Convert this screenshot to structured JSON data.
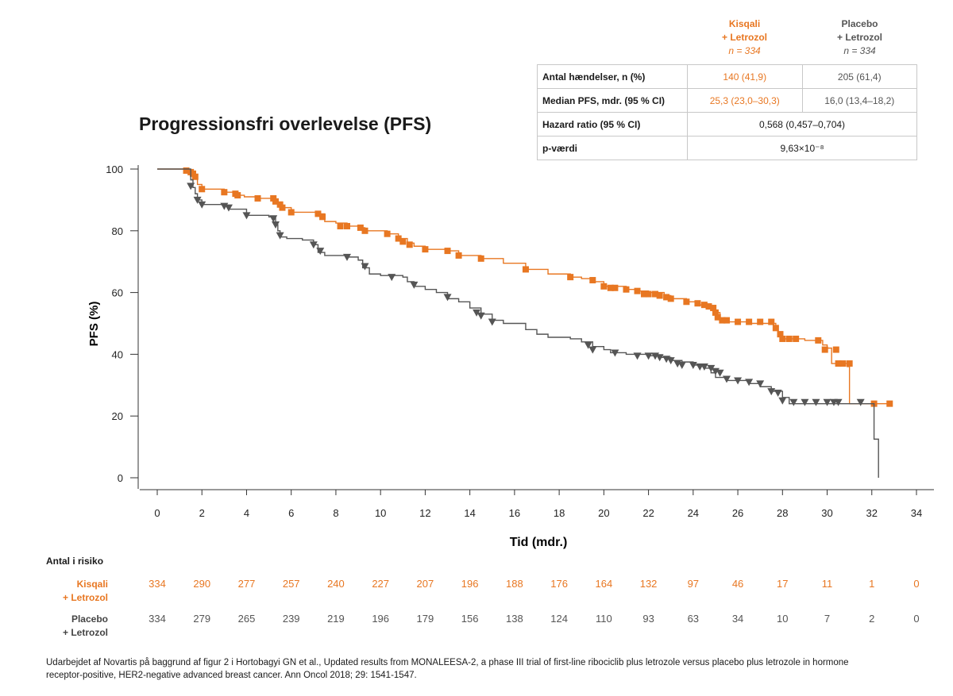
{
  "stats_table": {
    "kisqali_header": {
      "name": "Kisqali",
      "combo": "+ Letrozol",
      "n": "n = 334"
    },
    "placebo_header": {
      "name": "Placebo",
      "combo": "+ Letrozol",
      "n": "n = 334"
    },
    "rows": [
      {
        "label": "Antal hændelser, n (%)",
        "kisqali": "140 (41,9)",
        "placebo": "205 (61,4)"
      },
      {
        "label": "Median PFS, mdr. (95 % CI)",
        "kisqali": "25,3 (23,0–30,3)",
        "placebo": "16,0 (13,4–18,2)"
      },
      {
        "label": "Hazard ratio (95 % CI)",
        "combined": "0,568 (0,457–0,704)"
      },
      {
        "label": "p-værdi",
        "combined": "9,63×10⁻⁸"
      }
    ]
  },
  "chart_data": {
    "type": "line",
    "title": "Progressionsfri overlevelse (PFS)",
    "xlabel": "Tid (mdr.)",
    "ylabel": "PFS (%)",
    "xlim": [
      -1,
      34
    ],
    "ylim": [
      0,
      100
    ],
    "xticks": [
      0,
      2,
      4,
      6,
      8,
      10,
      12,
      14,
      16,
      18,
      20,
      22,
      24,
      26,
      28,
      30,
      32,
      34
    ],
    "yticks": [
      0,
      20,
      40,
      60,
      80,
      100
    ],
    "series": [
      {
        "name": "Kisqali + Letrozol",
        "color": "#e87722",
        "marker": "square",
        "points": [
          [
            0,
            100
          ],
          [
            1.3,
            99.5
          ],
          [
            1.5,
            98.5
          ],
          [
            1.7,
            97
          ],
          [
            1.8,
            95
          ],
          [
            2,
            93.5
          ],
          [
            3,
            92.5
          ],
          [
            3.6,
            91.5
          ],
          [
            3.9,
            91
          ],
          [
            4.5,
            90.5
          ],
          [
            5.2,
            90
          ],
          [
            5.4,
            89
          ],
          [
            5.6,
            87.5
          ],
          [
            6,
            86
          ],
          [
            7.2,
            85.5
          ],
          [
            7.5,
            83
          ],
          [
            8,
            82.5
          ],
          [
            8.5,
            81.5
          ],
          [
            9.1,
            81
          ],
          [
            9.3,
            80
          ],
          [
            10.3,
            79
          ],
          [
            10.8,
            77.5
          ],
          [
            11.2,
            76
          ],
          [
            11.5,
            75
          ],
          [
            12,
            74
          ],
          [
            13,
            73.5
          ],
          [
            13.5,
            72
          ],
          [
            14.5,
            71
          ],
          [
            15.5,
            69.5
          ],
          [
            16.5,
            67.5
          ],
          [
            17.5,
            66
          ],
          [
            18.5,
            65
          ],
          [
            19,
            64.5
          ],
          [
            19.6,
            63.5
          ],
          [
            20,
            62
          ],
          [
            21,
            61
          ],
          [
            21.5,
            60.5
          ],
          [
            22,
            60
          ],
          [
            22.7,
            59
          ],
          [
            23,
            58
          ],
          [
            23.7,
            57
          ],
          [
            24.3,
            56
          ],
          [
            24.8,
            55
          ],
          [
            25,
            53.5
          ],
          [
            25.2,
            51.5
          ],
          [
            25.5,
            50.5
          ],
          [
            26.5,
            50
          ],
          [
            27.5,
            50
          ],
          [
            27.7,
            48
          ],
          [
            27.8,
            46.5
          ],
          [
            28,
            45
          ],
          [
            29,
            44.5
          ],
          [
            29.8,
            43
          ],
          [
            30,
            42
          ],
          [
            30.2,
            37
          ],
          [
            30.9,
            36
          ],
          [
            31,
            24
          ],
          [
            32,
            24
          ],
          [
            32.8,
            24
          ]
        ],
        "censor_marks": [
          [
            1.3,
            99.5
          ],
          [
            1.5,
            99
          ],
          [
            1.6,
            98.5
          ],
          [
            1.7,
            97.5
          ],
          [
            2,
            93.5
          ],
          [
            3,
            92.5
          ],
          [
            3.5,
            92
          ],
          [
            3.6,
            91.5
          ],
          [
            4.5,
            90.5
          ],
          [
            5.2,
            90.5
          ],
          [
            5.3,
            89.5
          ],
          [
            5.5,
            88.5
          ],
          [
            5.6,
            87.5
          ],
          [
            6,
            86
          ],
          [
            7.2,
            85.5
          ],
          [
            7.4,
            84.5
          ],
          [
            8.2,
            81.5
          ],
          [
            8.5,
            81.5
          ],
          [
            9.1,
            81
          ],
          [
            9.3,
            80
          ],
          [
            10.3,
            79
          ],
          [
            10.8,
            77.5
          ],
          [
            11,
            76.5
          ],
          [
            11.3,
            75.5
          ],
          [
            12,
            74
          ],
          [
            13,
            73.5
          ],
          [
            13.5,
            72
          ],
          [
            14.5,
            71
          ],
          [
            16.5,
            67.5
          ],
          [
            18.5,
            65
          ],
          [
            19.5,
            64
          ],
          [
            20,
            62
          ],
          [
            20.3,
            61.5
          ],
          [
            20.5,
            61.5
          ],
          [
            21,
            61
          ],
          [
            21.5,
            60.5
          ],
          [
            21.8,
            59.5
          ],
          [
            22,
            59.5
          ],
          [
            22.3,
            59.5
          ],
          [
            22.5,
            59
          ],
          [
            22.8,
            58.5
          ],
          [
            23,
            58
          ],
          [
            23.7,
            57
          ],
          [
            24.2,
            56.5
          ],
          [
            24.5,
            56
          ],
          [
            24.7,
            55.5
          ],
          [
            24.9,
            55
          ],
          [
            25,
            53.5
          ],
          [
            25.1,
            52
          ],
          [
            25.3,
            51
          ],
          [
            25.5,
            51
          ],
          [
            26,
            50.5
          ],
          [
            26.5,
            50.5
          ],
          [
            27,
            50.5
          ],
          [
            27.5,
            50.5
          ],
          [
            27.7,
            48.5
          ],
          [
            27.9,
            46.5
          ],
          [
            28,
            45
          ],
          [
            28.3,
            45
          ],
          [
            28.6,
            45
          ],
          [
            29.6,
            44.5
          ],
          [
            29.9,
            41.5
          ],
          [
            30.4,
            41.5
          ],
          [
            30.5,
            37
          ],
          [
            30.7,
            37
          ],
          [
            31,
            37
          ],
          [
            32.1,
            24
          ],
          [
            32.8,
            24
          ]
        ]
      },
      {
        "name": "Placebo + Letrozol",
        "color": "#555555",
        "marker": "triangle-down",
        "points": [
          [
            0,
            100
          ],
          [
            1.5,
            99
          ],
          [
            1.5,
            96.5
          ],
          [
            1.6,
            94
          ],
          [
            1.7,
            92
          ],
          [
            1.8,
            90
          ],
          [
            2,
            88.5
          ],
          [
            3,
            88
          ],
          [
            3.2,
            87
          ],
          [
            4,
            85
          ],
          [
            5,
            84.5
          ],
          [
            5.3,
            82
          ],
          [
            5.4,
            80
          ],
          [
            5.5,
            78
          ],
          [
            5.8,
            77.5
          ],
          [
            6.5,
            77
          ],
          [
            7,
            75.5
          ],
          [
            7.2,
            73
          ],
          [
            7.5,
            72
          ],
          [
            8.5,
            71.5
          ],
          [
            9,
            70.5
          ],
          [
            9.2,
            68
          ],
          [
            9.5,
            66
          ],
          [
            10,
            65.5
          ],
          [
            11,
            65
          ],
          [
            11.2,
            63.5
          ],
          [
            11.5,
            62
          ],
          [
            12,
            61
          ],
          [
            12.5,
            60
          ],
          [
            13,
            58
          ],
          [
            13.5,
            57
          ],
          [
            14,
            55
          ],
          [
            14.5,
            53
          ],
          [
            15,
            51
          ],
          [
            15.5,
            50
          ],
          [
            16.5,
            48
          ],
          [
            17,
            46.5
          ],
          [
            17.5,
            45.5
          ],
          [
            18.5,
            45
          ],
          [
            19,
            44
          ],
          [
            19.5,
            42.5
          ],
          [
            20,
            41.5
          ],
          [
            20.3,
            40.5
          ],
          [
            21,
            40
          ],
          [
            22,
            39.5
          ],
          [
            22.5,
            39
          ],
          [
            23,
            38
          ],
          [
            23.5,
            37.5
          ],
          [
            24,
            36.5
          ],
          [
            24.5,
            35.5
          ],
          [
            24.8,
            34
          ],
          [
            25,
            32.5
          ],
          [
            25.5,
            31.5
          ],
          [
            26.5,
            30.5
          ],
          [
            27,
            29.5
          ],
          [
            27.5,
            28
          ],
          [
            28,
            26
          ],
          [
            28.3,
            24
          ],
          [
            29,
            24
          ],
          [
            30.5,
            24
          ],
          [
            31.5,
            24
          ],
          [
            32,
            24
          ],
          [
            32.1,
            12.5
          ],
          [
            32.3,
            12
          ],
          [
            32.3,
            0
          ]
        ],
        "censor_marks": [
          [
            1.5,
            94.5
          ],
          [
            1.8,
            90
          ],
          [
            2,
            88.5
          ],
          [
            3,
            88
          ],
          [
            3.2,
            87.5
          ],
          [
            4,
            85
          ],
          [
            5.2,
            84
          ],
          [
            5.3,
            82
          ],
          [
            5.5,
            78.5
          ],
          [
            7,
            75.5
          ],
          [
            7.3,
            73.5
          ],
          [
            8.5,
            71.5
          ],
          [
            9.3,
            68.5
          ],
          [
            10.5,
            65
          ],
          [
            11.5,
            62.5
          ],
          [
            13,
            58.5
          ],
          [
            14.3,
            53.5
          ],
          [
            14.5,
            52.5
          ],
          [
            15,
            50.5
          ],
          [
            19.3,
            43
          ],
          [
            19.5,
            41.5
          ],
          [
            20.5,
            40.5
          ],
          [
            21.5,
            39.5
          ],
          [
            22,
            39.5
          ],
          [
            22.3,
            39.5
          ],
          [
            22.5,
            39
          ],
          [
            22.8,
            38.5
          ],
          [
            23,
            38
          ],
          [
            23.3,
            37
          ],
          [
            23.5,
            36.5
          ],
          [
            24,
            36.5
          ],
          [
            24.3,
            36
          ],
          [
            24.5,
            36
          ],
          [
            24.8,
            35.5
          ],
          [
            25,
            34.5
          ],
          [
            25.2,
            34
          ],
          [
            25.5,
            32
          ],
          [
            26,
            31.5
          ],
          [
            26.5,
            31
          ],
          [
            27,
            30.5
          ],
          [
            27.5,
            28
          ],
          [
            27.8,
            27.5
          ],
          [
            28,
            25
          ],
          [
            28.5,
            24.5
          ],
          [
            29,
            24.5
          ],
          [
            29.5,
            24.5
          ],
          [
            30,
            24.5
          ],
          [
            30.3,
            24.5
          ],
          [
            30.5,
            24.5
          ],
          [
            31.5,
            24.5
          ]
        ]
      }
    ],
    "risk_table": {
      "title": "Antal i risiko",
      "times": [
        0,
        2,
        4,
        6,
        8,
        10,
        12,
        14,
        16,
        18,
        20,
        22,
        24,
        26,
        28,
        30,
        32,
        34
      ],
      "kisqali": {
        "name": "Kisqali",
        "combo": "+ Letrozol",
        "values": [
          334,
          290,
          277,
          257,
          240,
          227,
          207,
          196,
          188,
          176,
          164,
          132,
          97,
          46,
          17,
          11,
          1,
          0
        ]
      },
      "placebo": {
        "name": "Placebo",
        "combo": "+ Letrozol",
        "values": [
          334,
          279,
          265,
          239,
          219,
          196,
          179,
          156,
          138,
          124,
          110,
          93,
          63,
          34,
          10,
          7,
          2,
          0
        ]
      }
    }
  },
  "footnote": "Udarbejdet af Novartis på baggrund af figur 2 i Hortobagyi GN et al., Updated results from MONALEESA-2, a phase III trial of first-line ribociclib plus letrozole versus placebo plus letrozole in hormone receptor-positive, HER2-negative advanced breast cancer. Ann Oncol 2018; 29: 1541-1547."
}
